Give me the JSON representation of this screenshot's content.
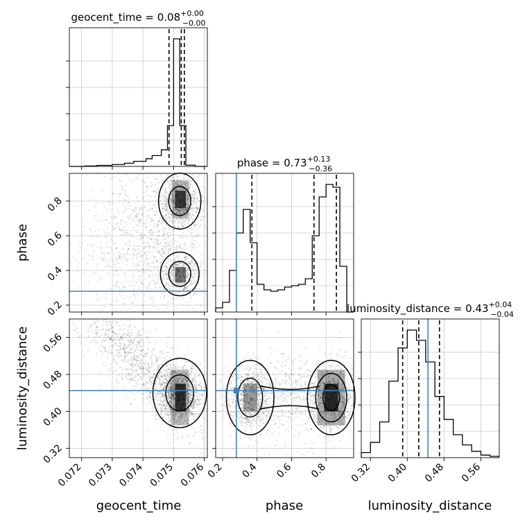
{
  "chart_data": {
    "type": "corner",
    "parameters": [
      {
        "key": "geocent_time",
        "label": "geocent_time",
        "range": [
          0.0716,
          0.0761
        ]
      },
      {
        "key": "phase",
        "label": "phase",
        "range": [
          0.16,
          0.96
        ]
      },
      {
        "key": "luminosity_distance",
        "label": "luminosity_distance",
        "range": [
          0.3,
          0.6
        ]
      }
    ],
    "titles": [
      {
        "main": "geocent_time = 0.08",
        "sup": "+0.00",
        "sub": "−0.00"
      },
      {
        "main": "phase = 0.73",
        "sup": "+0.13",
        "sub": "−0.36"
      },
      {
        "main": "luminosity_distance = 0.43",
        "sup": "+0.04",
        "sub": "−0.04"
      }
    ],
    "ticks": {
      "geocent_time": [
        "0.072",
        "0.073",
        "0.074",
        "0.075",
        "0.076"
      ],
      "phase": [
        "0.2",
        "0.4",
        "0.6",
        "0.8"
      ],
      "luminosity_distance": [
        "0.32",
        "0.40",
        "0.48",
        "0.56"
      ]
    },
    "truths": {
      "geocent_time": null,
      "phase": 0.28,
      "luminosity_distance": 0.445
    },
    "quantile_lines": {
      "geocent_time": [
        0.07485,
        0.07525,
        0.07535
      ],
      "phase": [
        0.37,
        0.73,
        0.86
      ],
      "luminosity_distance": [
        0.39,
        0.425,
        0.47
      ]
    },
    "histograms": {
      "geocent_time": {
        "edges": [
          0.0716,
          0.0721,
          0.0725,
          0.073,
          0.0734,
          0.0737,
          0.0741,
          0.0743,
          0.0746,
          0.0748,
          0.075,
          0.0752,
          0.0754,
          0.0757,
          0.0759,
          0.0761
        ],
        "counts": [
          0.0,
          0.003,
          0.008,
          0.015,
          0.025,
          0.04,
          0.06,
          0.085,
          0.13,
          0.32,
          1.0,
          0.32,
          0.01,
          0.0,
          0.0
        ]
      },
      "phase": {
        "edges": [
          0.16,
          0.2,
          0.24,
          0.28,
          0.32,
          0.36,
          0.4,
          0.44,
          0.48,
          0.52,
          0.56,
          0.6,
          0.64,
          0.68,
          0.72,
          0.76,
          0.8,
          0.84,
          0.88,
          0.92,
          0.96
        ],
        "counts": [
          0.03,
          0.07,
          0.3,
          0.57,
          0.74,
          0.5,
          0.2,
          0.16,
          0.15,
          0.16,
          0.18,
          0.19,
          0.2,
          0.24,
          0.55,
          0.83,
          0.92,
          0.9,
          0.33,
          0.0
        ]
      },
      "luminosity_distance": {
        "edges": [
          0.3,
          0.32,
          0.34,
          0.36,
          0.38,
          0.4,
          0.42,
          0.44,
          0.46,
          0.48,
          0.5,
          0.52,
          0.54,
          0.56,
          0.58,
          0.6
        ],
        "counts": [
          0.04,
          0.12,
          0.28,
          0.6,
          0.86,
          1.0,
          0.92,
          0.75,
          0.48,
          0.3,
          0.18,
          0.1,
          0.05,
          0.02,
          0.01
        ]
      }
    },
    "pairs": [
      {
        "x": "geocent_time",
        "y": "phase"
      },
      {
        "x": "geocent_time",
        "y": "luminosity_distance"
      },
      {
        "x": "phase",
        "y": "luminosity_distance"
      }
    ]
  }
}
